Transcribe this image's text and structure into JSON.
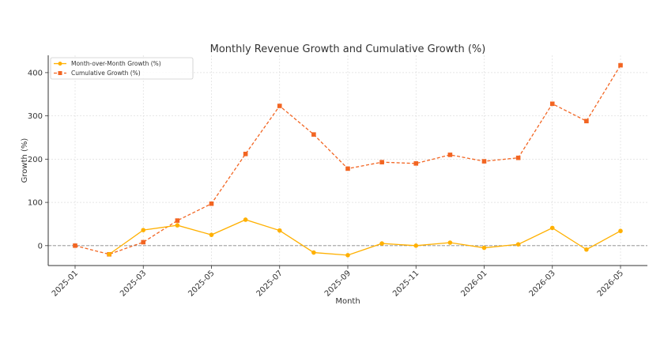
{
  "chart_data": {
    "type": "line",
    "title": "Monthly Revenue Growth and Cumulative Growth (%)",
    "xlabel": "Month",
    "ylabel": "Growth (%)",
    "x": [
      "2025-01",
      "2025-02",
      "2025-03",
      "2025-04",
      "2025-05",
      "2025-06",
      "2025-07",
      "2025-08",
      "2025-09",
      "2025-10",
      "2025-11",
      "2025-12",
      "2026-01",
      "2026-02",
      "2026-03",
      "2026-04",
      "2026-05"
    ],
    "x_ticks": [
      "2025-01",
      "2025-03",
      "2025-05",
      "2025-07",
      "2025-09",
      "2025-11",
      "2026-01",
      "2026-03",
      "2026-05"
    ],
    "y_ticks": [
      0,
      100,
      200,
      300,
      400
    ],
    "ylim": [
      -46,
      440
    ],
    "grid": true,
    "zero_line": true,
    "legend_position": "top-left",
    "series": [
      {
        "name": "Month-over-Month Growth (%)",
        "color": "#FFB000",
        "style": "solid",
        "marker": "circle",
        "values": [
          null,
          -20,
          36,
          47,
          25,
          60,
          35,
          -16,
          -22,
          5,
          0,
          7,
          -5,
          3,
          41,
          -9,
          34
        ]
      },
      {
        "name": "Cumulative Growth (%)",
        "color": "#F26522",
        "style": "dashed",
        "marker": "square",
        "values": [
          0,
          -20,
          8,
          58,
          97,
          212,
          323,
          257,
          178,
          193,
          190,
          210,
          195,
          203,
          328,
          288,
          417
        ]
      }
    ]
  }
}
